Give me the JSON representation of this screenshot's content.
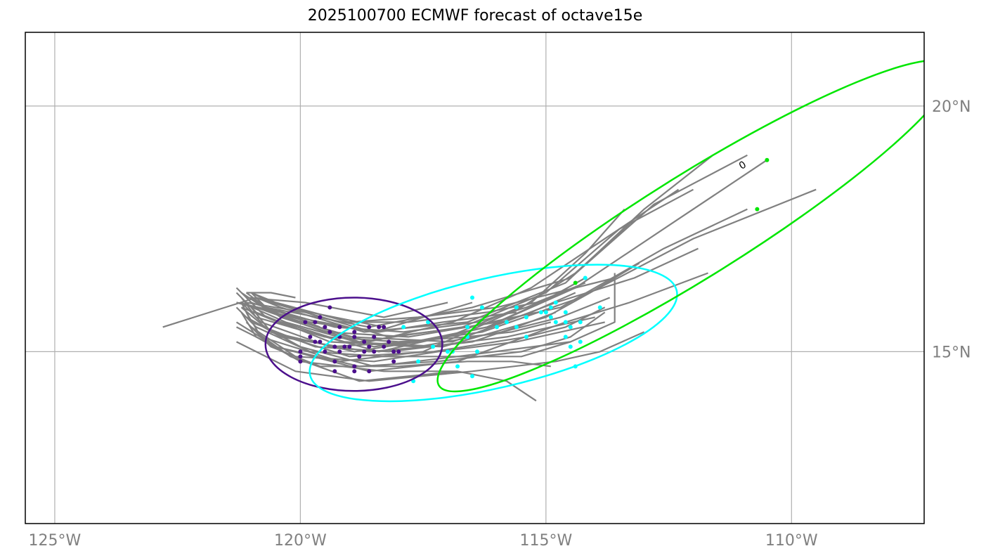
{
  "title": "2025100700 ECMWF forecast of octave15e",
  "colors": {
    "track": "#808080",
    "grid": "#b0b0b0",
    "frame": "#000000",
    "day1": "#4b0f8c",
    "day2": "#00ffff",
    "day3": "#00e600",
    "tick_text": "#808080"
  },
  "chart_data": {
    "type": "scatter",
    "map_extent": {
      "lon": [
        -125.6,
        -107.3
      ],
      "lat": [
        11.5,
        21.5
      ]
    },
    "grid": true,
    "xticks": [
      {
        "value": -125,
        "label": "125°W"
      },
      {
        "value": -120,
        "label": "120°W"
      },
      {
        "value": -115,
        "label": "115°W"
      },
      {
        "value": -110,
        "label": "110°W"
      }
    ],
    "yticks": [
      {
        "value": 15,
        "label": "15°N"
      },
      {
        "value": 20,
        "label": "20°N"
      }
    ],
    "tracks": [
      [
        [
          -110.9,
          19.0
        ],
        [
          -112.8,
          18.0
        ],
        [
          -114.5,
          16.5
        ],
        [
          -116.5,
          15.9
        ],
        [
          -118.6,
          15.5
        ],
        [
          -120.7,
          15.9
        ],
        [
          -121.0,
          16.2
        ]
      ],
      [
        [
          -111.6,
          19.0
        ],
        [
          -113.0,
          17.9
        ],
        [
          -114.6,
          16.4
        ],
        [
          -116.6,
          15.6
        ],
        [
          -118.7,
          15.4
        ],
        [
          -120.4,
          15.9
        ],
        [
          -120.9,
          16.1
        ]
      ],
      [
        [
          -110.5,
          18.9
        ],
        [
          -112.3,
          17.7
        ],
        [
          -114.4,
          16.3
        ],
        [
          -116.2,
          15.5
        ],
        [
          -118.4,
          15.0
        ],
        [
          -120.2,
          15.5
        ],
        [
          -121.2,
          15.9
        ]
      ],
      [
        [
          -109.5,
          18.3
        ],
        [
          -112.0,
          17.3
        ],
        [
          -114.3,
          16.1
        ],
        [
          -116.3,
          15.4
        ],
        [
          -118.5,
          15.1
        ],
        [
          -120.3,
          15.6
        ],
        [
          -121.2,
          16.0
        ]
      ],
      [
        [
          -110.9,
          17.9
        ],
        [
          -112.6,
          17.1
        ],
        [
          -114.7,
          15.9
        ],
        [
          -116.6,
          15.5
        ],
        [
          -118.2,
          15.3
        ],
        [
          -119.9,
          15.8
        ],
        [
          -121.1,
          16.0
        ]
      ],
      [
        [
          -111.9,
          17.1
        ],
        [
          -113.2,
          16.5
        ],
        [
          -114.8,
          16.0
        ],
        [
          -116.9,
          15.2
        ],
        [
          -119.0,
          15.3
        ],
        [
          -120.6,
          15.8
        ],
        [
          -121.2,
          16.2
        ]
      ],
      [
        [
          -113.4,
          17.9
        ],
        [
          -114.2,
          17.0
        ],
        [
          -115.3,
          16.0
        ],
        [
          -117.0,
          15.3
        ],
        [
          -118.9,
          15.0
        ],
        [
          -120.6,
          15.4
        ],
        [
          -121.0,
          15.9
        ]
      ],
      [
        [
          -113.3,
          17.6
        ],
        [
          -114.4,
          16.6
        ],
        [
          -115.5,
          15.9
        ],
        [
          -117.5,
          15.0
        ],
        [
          -119.2,
          14.8
        ],
        [
          -120.8,
          15.3
        ],
        [
          -121.1,
          15.8
        ]
      ],
      [
        [
          -111.7,
          16.6
        ],
        [
          -113.3,
          16.0
        ],
        [
          -114.6,
          15.6
        ],
        [
          -116.8,
          14.8
        ],
        [
          -118.6,
          14.6
        ],
        [
          -120.5,
          15.1
        ],
        [
          -121.3,
          15.5
        ]
      ],
      [
        [
          -113.0,
          15.4
        ],
        [
          -113.9,
          15.0
        ],
        [
          -114.8,
          14.8
        ],
        [
          -116.5,
          14.6
        ],
        [
          -118.6,
          14.4
        ],
        [
          -120.1,
          14.6
        ],
        [
          -121.3,
          15.2
        ]
      ],
      [
        [
          -112.3,
          18.3
        ],
        [
          -113.8,
          17.3
        ],
        [
          -115.3,
          16.3
        ],
        [
          -116.9,
          15.6
        ],
        [
          -118.6,
          15.2
        ],
        [
          -120.3,
          15.7
        ],
        [
          -120.9,
          16.0
        ]
      ],
      [
        [
          -112.0,
          18.3
        ],
        [
          -113.5,
          17.5
        ],
        [
          -115.0,
          16.2
        ],
        [
          -116.7,
          15.5
        ],
        [
          -118.8,
          15.2
        ],
        [
          -120.4,
          15.7
        ],
        [
          -121.0,
          16.1
        ]
      ],
      [
        [
          -113.1,
          16.8
        ],
        [
          -114.1,
          16.2
        ],
        [
          -115.0,
          15.7
        ],
        [
          -117.1,
          15.1
        ],
        [
          -119.1,
          15.2
        ],
        [
          -120.7,
          15.7
        ],
        [
          -121.1,
          16.1
        ]
      ],
      [
        [
          -113.8,
          15.9
        ],
        [
          -114.6,
          15.5
        ],
        [
          -115.4,
          15.3
        ],
        [
          -117.3,
          15.0
        ],
        [
          -119.0,
          14.9
        ],
        [
          -120.6,
          15.4
        ],
        [
          -121.2,
          15.9
        ]
      ],
      [
        [
          -115.2,
          14.0
        ],
        [
          -115.8,
          14.4
        ],
        [
          -116.8,
          14.6
        ],
        [
          -118.3,
          14.6
        ],
        [
          -120.0,
          14.8
        ],
        [
          -120.9,
          15.3
        ],
        [
          -121.2,
          15.8
        ]
      ],
      [
        [
          -114.5,
          15.2
        ],
        [
          -115.5,
          14.9
        ],
        [
          -116.7,
          14.9
        ],
        [
          -118.3,
          14.9
        ],
        [
          -119.8,
          15.0
        ],
        [
          -120.9,
          15.5
        ],
        [
          -121.3,
          15.9
        ]
      ],
      [
        [
          -113.7,
          16.1
        ],
        [
          -114.7,
          15.7
        ],
        [
          -115.9,
          15.4
        ],
        [
          -117.6,
          15.1
        ],
        [
          -119.4,
          15.2
        ],
        [
          -120.9,
          15.8
        ],
        [
          -121.3,
          16.2
        ]
      ],
      [
        [
          -113.8,
          15.8
        ],
        [
          -114.5,
          15.3
        ],
        [
          -115.5,
          15.0
        ],
        [
          -117.2,
          14.8
        ],
        [
          -118.8,
          14.7
        ],
        [
          -120.5,
          15.1
        ],
        [
          -121.3,
          15.6
        ]
      ],
      [
        [
          -114.4,
          16.2
        ],
        [
          -115.3,
          15.8
        ],
        [
          -116.2,
          15.5
        ],
        [
          -117.7,
          15.2
        ],
        [
          -119.4,
          15.1
        ],
        [
          -120.8,
          15.6
        ],
        [
          -121.2,
          16.0
        ]
      ],
      [
        [
          -114.2,
          16.5
        ],
        [
          -115.1,
          16.0
        ],
        [
          -116.0,
          15.6
        ],
        [
          -117.8,
          15.3
        ],
        [
          -119.5,
          15.4
        ],
        [
          -120.9,
          15.9
        ],
        [
          -121.3,
          16.3
        ]
      ],
      [
        [
          -114.9,
          15.6
        ],
        [
          -115.7,
          15.4
        ],
        [
          -116.6,
          15.3
        ],
        [
          -118.0,
          15.2
        ],
        [
          -119.5,
          15.3
        ],
        [
          -120.9,
          15.7
        ],
        [
          -121.2,
          16.1
        ]
      ],
      [
        [
          -114.8,
          15.8
        ],
        [
          -115.6,
          15.5
        ],
        [
          -116.5,
          15.2
        ],
        [
          -118.2,
          15.0
        ],
        [
          -119.7,
          15.1
        ],
        [
          -121.0,
          15.6
        ],
        [
          -121.2,
          16.0
        ]
      ],
      [
        [
          -114.4,
          16.3
        ],
        [
          -115.4,
          15.9
        ],
        [
          -116.4,
          15.6
        ],
        [
          -117.9,
          15.4
        ],
        [
          -119.3,
          15.5
        ],
        [
          -120.7,
          15.9
        ],
        [
          -121.1,
          16.2
        ]
      ],
      [
        [
          -114.2,
          16.4
        ],
        [
          -115.2,
          16.0
        ],
        [
          -116.2,
          15.8
        ],
        [
          -117.8,
          15.6
        ],
        [
          -119.2,
          15.6
        ],
        [
          -120.6,
          16.0
        ],
        [
          -121.0,
          16.2
        ]
      ],
      [
        [
          -113.8,
          15.6
        ],
        [
          -114.7,
          15.4
        ],
        [
          -115.6,
          15.2
        ],
        [
          -117.2,
          15.0
        ],
        [
          -118.5,
          14.8
        ],
        [
          -120.1,
          14.9
        ],
        [
          -121.0,
          15.5
        ]
      ],
      [
        [
          -114.0,
          15.7
        ],
        [
          -114.9,
          15.5
        ],
        [
          -115.8,
          15.3
        ],
        [
          -117.4,
          15.1
        ],
        [
          -118.6,
          15.0
        ],
        [
          -120.4,
          15.3
        ],
        [
          -121.1,
          15.7
        ]
      ],
      [
        [
          -114.9,
          14.7
        ],
        [
          -115.7,
          14.8
        ],
        [
          -116.6,
          14.8
        ],
        [
          -118.0,
          14.7
        ],
        [
          -119.6,
          14.7
        ],
        [
          -120.6,
          15.1
        ],
        [
          -121.1,
          15.6
        ]
      ],
      [
        [
          -113.6,
          16.5
        ],
        [
          -114.8,
          16.2
        ],
        [
          -116.0,
          15.9
        ],
        [
          -117.6,
          15.7
        ],
        [
          -119.0,
          15.6
        ],
        [
          -120.5,
          16.0
        ],
        [
          -121.0,
          16.2
        ]
      ],
      [
        [
          -116.5,
          16.0
        ],
        [
          -118.5,
          15.4
        ],
        [
          -120.1,
          15.7
        ],
        [
          -121.0,
          16.0
        ]
      ],
      [
        [
          -117.0,
          16.0
        ],
        [
          -118.3,
          15.7
        ],
        [
          -119.9,
          16.0
        ],
        [
          -121.1,
          16.1
        ]
      ],
      [
        [
          -116.8,
          14.6
        ],
        [
          -118.8,
          14.4
        ],
        [
          -120.2,
          14.9
        ],
        [
          -120.9,
          15.4
        ]
      ],
      [
        [
          -113.6,
          16.6
        ],
        [
          -113.6,
          15.6
        ],
        [
          -114.5,
          15.2
        ],
        [
          -116.8,
          14.9
        ],
        [
          -118.5,
          14.7
        ],
        [
          -120.0,
          15.1
        ],
        [
          -121.1,
          15.7
        ]
      ],
      [
        [
          -115.6,
          15.8
        ],
        [
          -117.1,
          15.6
        ],
        [
          -118.4,
          15.4
        ],
        [
          -119.8,
          15.6
        ],
        [
          -121.3,
          16.0
        ]
      ],
      [
        [
          -118.3,
          15.5
        ],
        [
          -119.8,
          15.8
        ],
        [
          -120.9,
          16.1
        ],
        [
          -122.8,
          15.5
        ]
      ],
      [
        [
          -119.6,
          15.5
        ],
        [
          -120.4,
          15.8
        ],
        [
          -121.3,
          16.0
        ]
      ],
      [
        [
          -121.1,
          16.2
        ],
        [
          -120.6,
          16.2
        ],
        [
          -120.1,
          16.1
        ]
      ]
    ],
    "day1_points": [
      [
        -119.2,
        15.3
      ],
      [
        -118.7,
        15.2
      ],
      [
        -119.5,
        15.0
      ],
      [
        -118.4,
        15.5
      ],
      [
        -119.3,
        14.8
      ],
      [
        -118.6,
        14.6
      ],
      [
        -120.0,
        14.9
      ],
      [
        -118.9,
        15.4
      ],
      [
        -119.4,
        15.4
      ],
      [
        -118.3,
        15.1
      ],
      [
        -118.9,
        14.7
      ],
      [
        -119.7,
        15.6
      ],
      [
        -119.0,
        15.1
      ],
      [
        -120.0,
        15.0
      ],
      [
        -118.2,
        15.2
      ],
      [
        -119.6,
        15.2
      ],
      [
        -119.9,
        15.6
      ],
      [
        -118.6,
        15.5
      ],
      [
        -119.4,
        15.9
      ],
      [
        -120.0,
        14.8
      ],
      [
        -118.5,
        15.0
      ],
      [
        -119.2,
        15.0
      ],
      [
        -118.8,
        14.9
      ],
      [
        -119.8,
        15.3
      ],
      [
        -118.7,
        15.0
      ],
      [
        -119.5,
        15.5
      ],
      [
        -118.9,
        15.3
      ],
      [
        -119.3,
        15.1
      ],
      [
        -118.5,
        15.3
      ],
      [
        -118.1,
        15.0
      ],
      [
        -118.9,
        14.6
      ],
      [
        -118.6,
        15.1
      ],
      [
        -118.1,
        14.8
      ],
      [
        -119.1,
        15.1
      ],
      [
        -119.6,
        15.7
      ],
      [
        -118.0,
        15.0
      ],
      [
        -119.3,
        14.6
      ],
      [
        -119.7,
        15.2
      ],
      [
        -118.3,
        15.5
      ],
      [
        -119.2,
        15.5
      ]
    ],
    "day2_points": [
      [
        -116.5,
        16.1
      ],
      [
        -116.3,
        15.9
      ],
      [
        -115.6,
        15.9
      ],
      [
        -115.0,
        15.8
      ],
      [
        -114.8,
        15.6
      ],
      [
        -114.9,
        15.9
      ],
      [
        -115.1,
        15.8
      ],
      [
        -114.6,
        15.6
      ],
      [
        -114.5,
        15.5
      ],
      [
        -114.3,
        15.6
      ],
      [
        -114.6,
        15.3
      ],
      [
        -115.4,
        15.3
      ],
      [
        -115.8,
        15.6
      ],
      [
        -115.6,
        15.5
      ],
      [
        -116.0,
        15.5
      ],
      [
        -116.6,
        15.5
      ],
      [
        -116.6,
        15.3
      ],
      [
        -117.4,
        15.6
      ],
      [
        -117.9,
        15.5
      ],
      [
        -117.3,
        15.1
      ],
      [
        -117.0,
        15.0
      ],
      [
        -116.9,
        15.0
      ],
      [
        -116.4,
        15.0
      ],
      [
        -117.6,
        14.8
      ],
      [
        -116.8,
        14.7
      ],
      [
        -117.7,
        14.4
      ],
      [
        -116.5,
        14.5
      ],
      [
        -114.5,
        15.1
      ],
      [
        -114.4,
        14.7
      ],
      [
        -114.9,
        15.7
      ],
      [
        -115.4,
        15.7
      ],
      [
        -114.3,
        15.2
      ],
      [
        -114.8,
        16.0
      ],
      [
        -113.9,
        15.9
      ],
      [
        -114.2,
        16.5
      ],
      [
        -114.6,
        15.8
      ]
    ],
    "day3_points": [
      [
        -110.5,
        18.9
      ],
      [
        -110.7,
        17.9
      ],
      [
        -114.4,
        16.4
      ]
    ],
    "ellipses": [
      {
        "day": 1,
        "center": [
          -118.91,
          15.15
        ],
        "semi_axes_deg": [
          1.8,
          0.95
        ],
        "angle": 0
      },
      {
        "day": 2,
        "center": [
          -116.07,
          15.38
        ],
        "semi_axes_deg": [
          3.83,
          1.12
        ],
        "angle": 13
      },
      {
        "day": 3,
        "center": [
          -111.97,
          17.56
        ],
        "semi_axes_deg": [
          6.14,
          1.04
        ],
        "angle": 32
      }
    ],
    "marker": {
      "lon": -111.0,
      "lat": 18.8,
      "label": "0"
    }
  }
}
